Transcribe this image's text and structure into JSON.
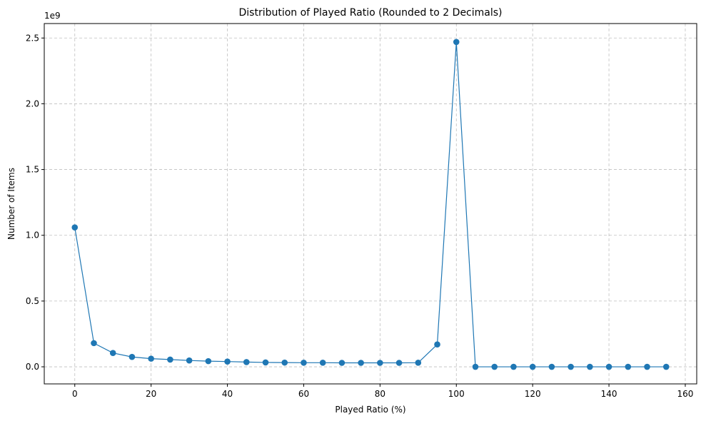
{
  "chart_data": {
    "type": "line",
    "title": "Distribution of Played Ratio (Rounded to 2 Decimals)",
    "xlabel": "Played Ratio (%)",
    "ylabel": "Number of Items",
    "offset_label": "1e9",
    "xlim": [
      -8,
      163
    ],
    "ylim": [
      -0.13,
      2.61
    ],
    "xticks": [
      0,
      20,
      40,
      60,
      80,
      100,
      120,
      140,
      160
    ],
    "yticks": [
      0.0,
      0.5,
      1.0,
      1.5,
      2.0,
      2.5
    ],
    "ytick_labels": [
      "0.0",
      "0.5",
      "1.0",
      "1.5",
      "2.0",
      "2.5"
    ],
    "grid": true,
    "color": "#1f77b4",
    "marker": "circle",
    "x": [
      0,
      5,
      10,
      15,
      20,
      25,
      30,
      35,
      40,
      45,
      50,
      55,
      60,
      65,
      70,
      75,
      80,
      85,
      90,
      95,
      100,
      105,
      110,
      115,
      120,
      125,
      130,
      135,
      140,
      145,
      150,
      155
    ],
    "y": [
      1.06,
      0.18,
      0.105,
      0.075,
      0.062,
      0.055,
      0.048,
      0.043,
      0.04,
      0.036,
      0.033,
      0.032,
      0.031,
      0.031,
      0.03,
      0.03,
      0.03,
      0.03,
      0.031,
      0.17,
      2.47,
      0.0,
      0.0,
      0.0,
      0.0,
      0.0,
      0.0,
      0.0,
      0.0,
      0.0,
      0.0,
      0.0
    ]
  }
}
